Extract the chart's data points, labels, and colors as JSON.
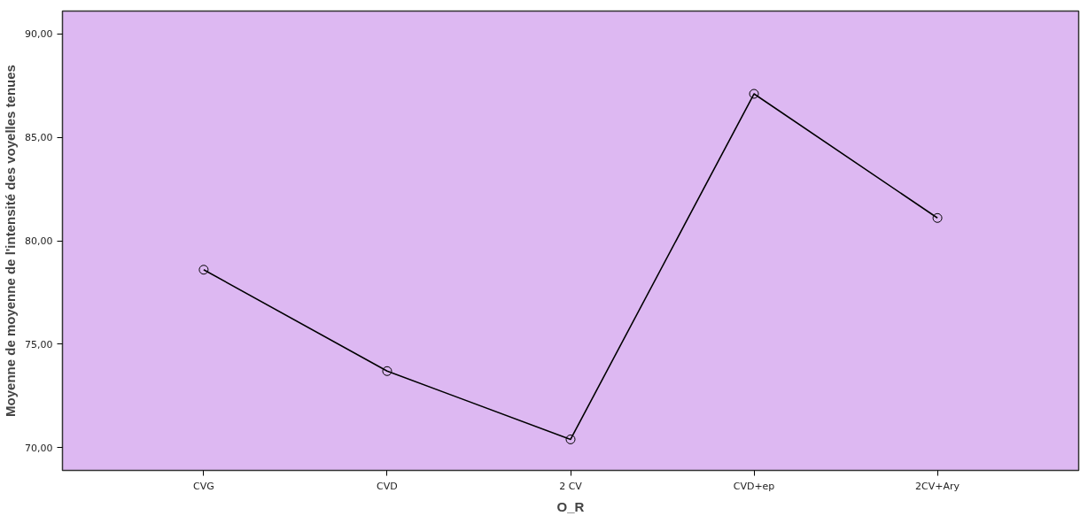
{
  "chart_data": {
    "type": "line",
    "xlabel": "O_R",
    "ylabel": "Moyenne de moyenne de l'intensité des voyelles tenues",
    "categories": [
      "CVG",
      "CVD",
      "2 CV",
      "CVD+ep",
      "2CV+Ary"
    ],
    "series": [
      {
        "color": "#000000",
        "values": [
          78.6,
          73.7,
          70.4,
          87.1,
          81.1
        ]
      }
    ],
    "ylim": [
      68.9,
      91.1
    ],
    "yticks": [
      {
        "value": 70,
        "label": "70,00"
      },
      {
        "value": 75,
        "label": "75,00"
      },
      {
        "value": 80,
        "label": "80,00"
      },
      {
        "value": 85,
        "label": "85,00"
      },
      {
        "value": 90,
        "label": "90,00"
      }
    ],
    "marker": "circle",
    "line_style": "solid",
    "grid": false
  }
}
